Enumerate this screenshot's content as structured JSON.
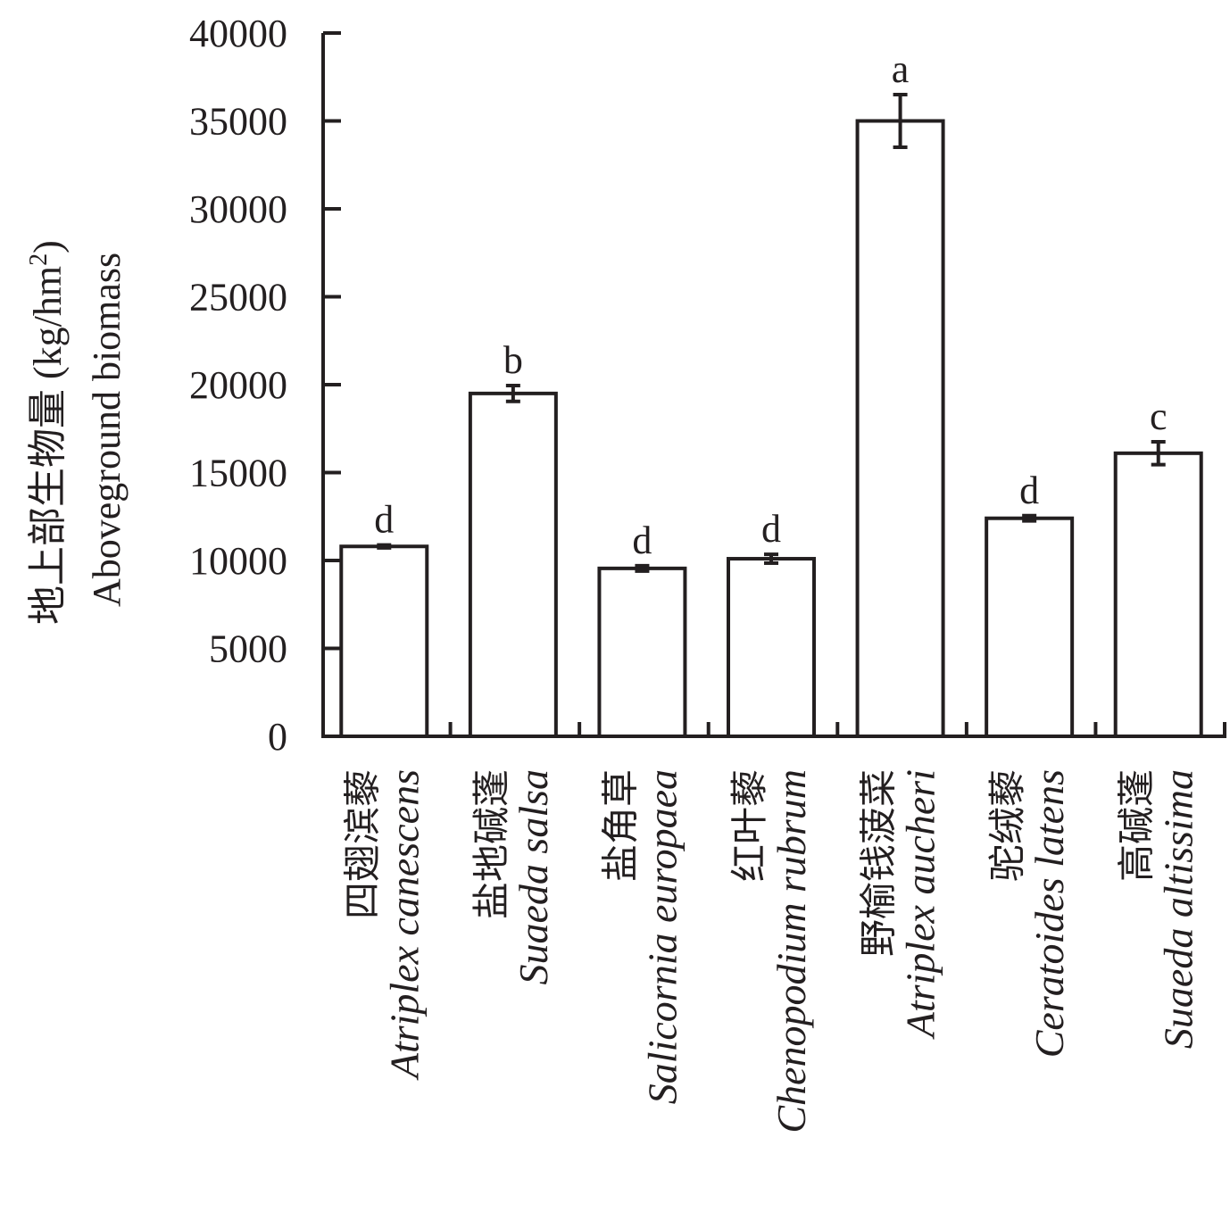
{
  "chart_data": {
    "type": "bar",
    "categories": [
      {
        "cn": "四翅滨藜",
        "latin": "Atriplex canescens"
      },
      {
        "cn": "盐地碱蓬",
        "latin": "Suaeda salsa"
      },
      {
        "cn": "盐角草",
        "latin": "Salicornia europaea"
      },
      {
        "cn": "红叶藜",
        "latin": "Chenopodium rubrum"
      },
      {
        "cn": "野榆钱菠菜",
        "latin": "Atriplex aucheri"
      },
      {
        "cn": "驼绒藜",
        "latin": "Ceratoides latens"
      },
      {
        "cn": "高碱蓬",
        "latin": "Suaeda altissima"
      }
    ],
    "values": [
      10800,
      19500,
      9550,
      10100,
      35000,
      12400,
      16100
    ],
    "errors": [
      80,
      450,
      150,
      250,
      1500,
      150,
      650
    ],
    "significance": [
      "d",
      "b",
      "d",
      "d",
      "a",
      "d",
      "c"
    ],
    "ylabel_cn": "地上部生物量 (kg/hm",
    "ylabel_sup": "2",
    "ylabel_cn_close": ")",
    "ylabel_en": "Aboveground biomass",
    "ylim": [
      0,
      40000
    ],
    "yticks": [
      "0",
      "5000",
      "10000",
      "15000",
      "20000",
      "25000",
      "30000",
      "35000",
      "40000"
    ],
    "grid": false,
    "colors": {
      "bar_fill": "#ffffff",
      "stroke": "#231f20"
    }
  }
}
